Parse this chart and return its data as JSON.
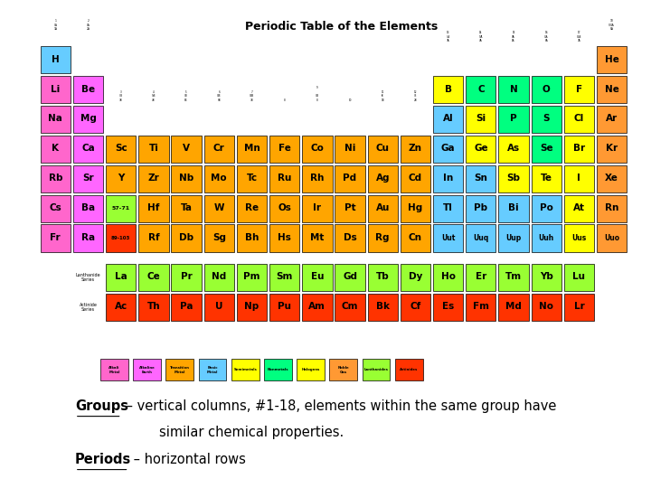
{
  "title": "Periodic Table of the Elements",
  "background_color": "#ffffff",
  "text_line1_bold": "Groups",
  "text_line1_normal": " – vertical columns, #1-18, elements within the same group have",
  "text_line2": "similar chemical properties.",
  "text_line3_bold": "Periods",
  "text_line3_normal": " – horizontal rows",
  "font_size": 10.5,
  "fig_width": 7.2,
  "fig_height": 5.4,
  "dpi": 100,
  "c_alkali": "#FF66CC",
  "c_alkaline": "#FF66FF",
  "c_transition": "#FFA500",
  "c_basic": "#66CCFF",
  "c_metalloid": "#FFFF00",
  "c_nonmetal": "#00FF80",
  "c_halogen": "#FFFF00",
  "c_noble": "#FF9933",
  "c_lanthanide": "#99FF33",
  "c_actinide": "#FF3300",
  "c_H": "#66CCFF",
  "c_Ba_Cs_extra": "#FF0000",
  "c_Ra": "#CC0000"
}
